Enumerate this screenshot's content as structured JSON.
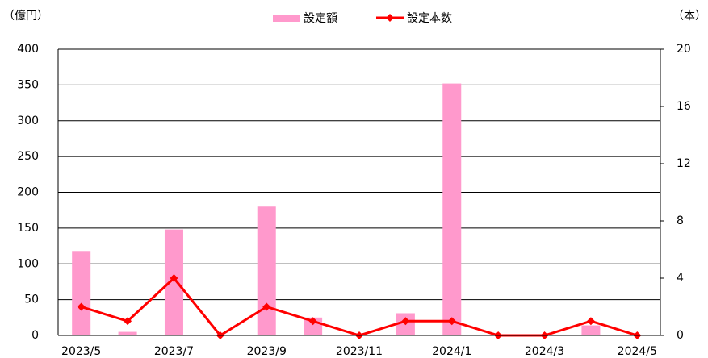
{
  "chart_data": {
    "type": "bar",
    "ylabel": "（億円）",
    "y2label": "（本）",
    "categories": [
      "2023/5",
      null,
      "2023/7",
      null,
      "2023/9",
      null,
      "2023/11",
      null,
      "2024/1",
      null,
      "2024/3",
      null,
      "2024/5"
    ],
    "series": [
      {
        "name": "設定額",
        "type": "bar",
        "color": "#ff99cc",
        "values": [
          118,
          5,
          148,
          0,
          180,
          25,
          0,
          31,
          352,
          0,
          0,
          14,
          0
        ]
      },
      {
        "name": "設定本数",
        "type": "line",
        "axis": "y2",
        "color": "#ff0000",
        "values": [
          2,
          1,
          4,
          0,
          2,
          1,
          0,
          1,
          1,
          0,
          0,
          1,
          0
        ]
      }
    ],
    "ylim": [
      0,
      400
    ],
    "yticks": [
      0,
      50,
      100,
      150,
      200,
      250,
      300,
      350,
      400
    ],
    "y2lim": [
      0,
      20
    ],
    "y2ticks": [
      0,
      4,
      8,
      12,
      16,
      20
    ],
    "grid": true,
    "legend": "top"
  }
}
